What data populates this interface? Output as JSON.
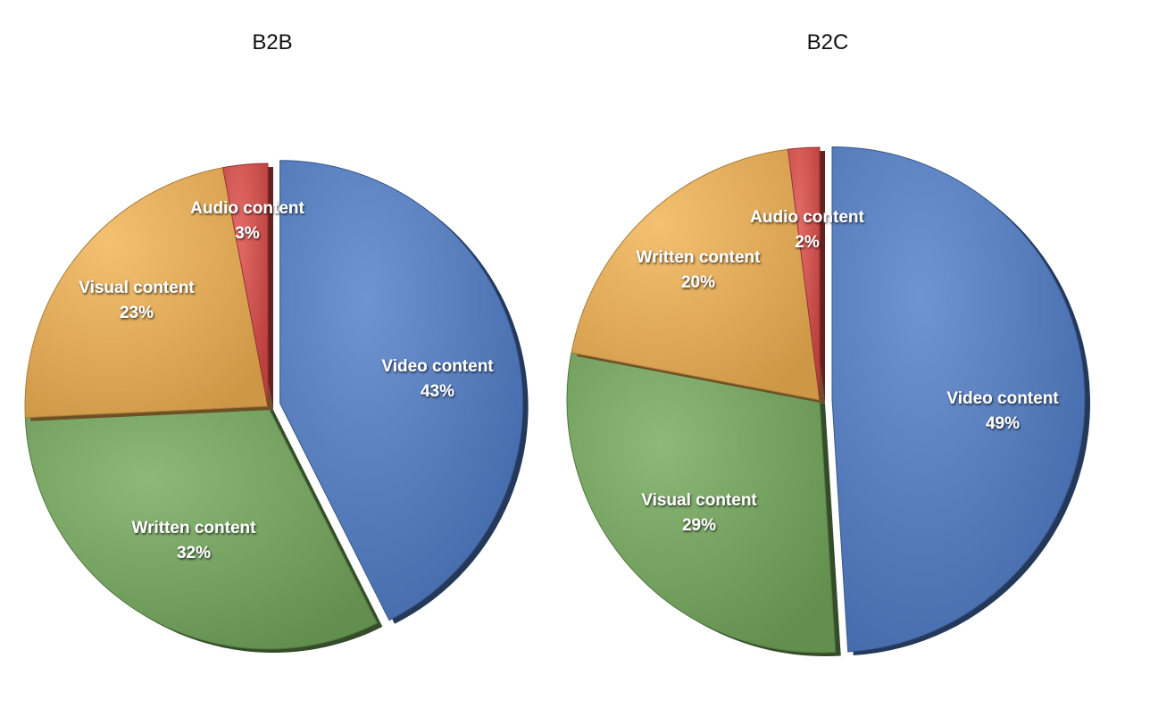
{
  "colors": {
    "video": "#4f7cc8",
    "written": "#73a85a",
    "visual": "#f2b252",
    "audio": "#dc4a47"
  },
  "chart_data": [
    {
      "type": "pie",
      "title": "B2B",
      "slices": [
        {
          "label": "Video content",
          "value": 43,
          "display": "43%",
          "color_key": "video"
        },
        {
          "label": "Written content",
          "value": 32,
          "display": "32%",
          "color_key": "written"
        },
        {
          "label": "Visual content",
          "value": 23,
          "display": "23%",
          "color_key": "visual"
        },
        {
          "label": "Audio content",
          "value": 3,
          "display": "3%",
          "color_key": "audio"
        }
      ],
      "exploded": "Video content",
      "style": "3d-shaded"
    },
    {
      "type": "pie",
      "title": "B2C",
      "slices": [
        {
          "label": "Video content",
          "value": 49,
          "display": "49%",
          "color_key": "video"
        },
        {
          "label": "Visual content",
          "value": 29,
          "display": "29%",
          "color_key": "written"
        },
        {
          "label": "Written content",
          "value": 20,
          "display": "20%",
          "color_key": "visual"
        },
        {
          "label": "Audio content",
          "value": 2,
          "display": "2%",
          "color_key": "audio"
        }
      ],
      "exploded": "Video content",
      "style": "3d-shaded"
    }
  ]
}
